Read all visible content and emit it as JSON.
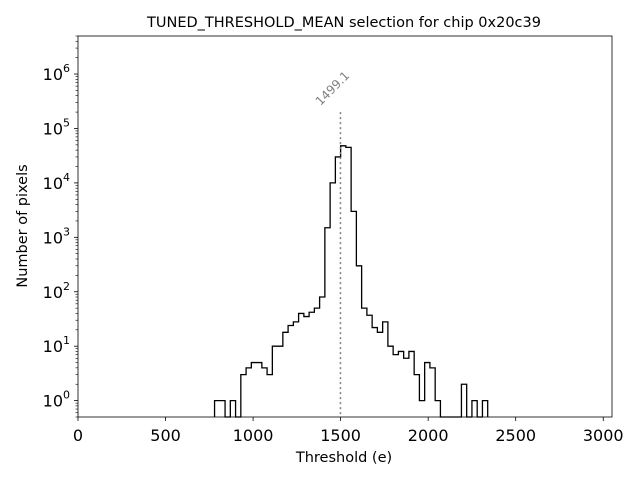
{
  "chart_data": {
    "type": "histogram",
    "title": "TUNED_THRESHOLD_MEAN selection for chip 0x20c39",
    "xlabel": "Threshold (e)",
    "ylabel": "Number of pixels",
    "xlim": [
      0,
      3050
    ],
    "ylim": [
      0.5,
      5000000
    ],
    "yscale": "log",
    "x_ticks": [
      0,
      500,
      1000,
      1500,
      2000,
      2500,
      3000
    ],
    "x_tick_labels": [
      "0",
      "500",
      "1000",
      "1500",
      "2000",
      "2500",
      "3000"
    ],
    "y_ticks": [
      1,
      10,
      100,
      1000,
      10000,
      100000,
      1000000
    ],
    "y_tick_labels": [
      {
        "base": "10",
        "exp": "0"
      },
      {
        "base": "10",
        "exp": "1"
      },
      {
        "base": "10",
        "exp": "2"
      },
      {
        "base": "10",
        "exp": "3"
      },
      {
        "base": "10",
        "exp": "4"
      },
      {
        "base": "10",
        "exp": "5"
      },
      {
        "base": "10",
        "exp": "6"
      }
    ],
    "bin_width": 30,
    "bins": [
      [
        780,
        1
      ],
      [
        810,
        1
      ],
      [
        840,
        0
      ],
      [
        870,
        1
      ],
      [
        900,
        0
      ],
      [
        930,
        3
      ],
      [
        960,
        4
      ],
      [
        990,
        5
      ],
      [
        1020,
        5
      ],
      [
        1050,
        4
      ],
      [
        1080,
        3
      ],
      [
        1110,
        10
      ],
      [
        1140,
        10
      ],
      [
        1170,
        18
      ],
      [
        1200,
        24
      ],
      [
        1230,
        28
      ],
      [
        1260,
        40
      ],
      [
        1290,
        35
      ],
      [
        1320,
        42
      ],
      [
        1350,
        50
      ],
      [
        1380,
        80
      ],
      [
        1410,
        1500
      ],
      [
        1440,
        10000
      ],
      [
        1470,
        30000
      ],
      [
        1500,
        48000
      ],
      [
        1530,
        45000
      ],
      [
        1560,
        3000
      ],
      [
        1590,
        300
      ],
      [
        1620,
        50
      ],
      [
        1650,
        37
      ],
      [
        1680,
        22
      ],
      [
        1710,
        18
      ],
      [
        1740,
        28
      ],
      [
        1770,
        10
      ],
      [
        1800,
        7
      ],
      [
        1830,
        8
      ],
      [
        1860,
        6
      ],
      [
        1890,
        8
      ],
      [
        1920,
        3
      ],
      [
        1950,
        1
      ],
      [
        1980,
        5
      ],
      [
        2010,
        4
      ],
      [
        2040,
        1
      ],
      [
        2070,
        0
      ],
      [
        2100,
        0
      ],
      [
        2130,
        0
      ],
      [
        2160,
        0
      ],
      [
        2190,
        2
      ],
      [
        2220,
        0
      ],
      [
        2250,
        1
      ],
      [
        2280,
        0
      ],
      [
        2310,
        1
      ]
    ],
    "vline": {
      "x": 1499.1,
      "label": "1499.1",
      "style": "dotted",
      "color": "#808080"
    }
  }
}
